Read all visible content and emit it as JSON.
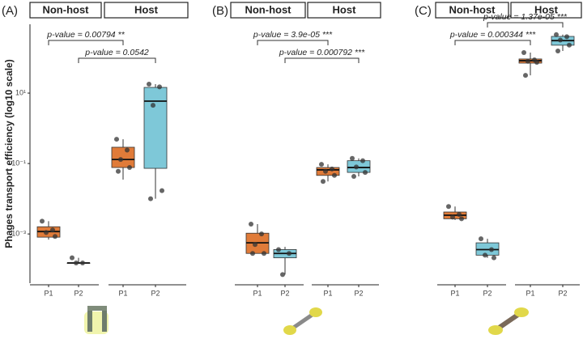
{
  "chart_data": [
    {
      "type": "box",
      "label": "(A)",
      "y_label": "Phages transport efficiency (log10 scale)",
      "log_scale": true,
      "ylim": [
        4e-05,
        900
      ],
      "yticks": [
        {
          "value": 10,
          "label": "10¹"
        },
        {
          "value": 0.1,
          "label": "10⁻¹"
        },
        {
          "value": 0.001,
          "label": "10⁻³"
        }
      ],
      "groups": [
        "Non-host",
        "Host"
      ],
      "categories": [
        "P1",
        "P2",
        "P1",
        "P2"
      ],
      "boxes": [
        {
          "color": "#e07b39",
          "whisker_low": 0.00069,
          "q1": 0.00081,
          "median": 0.00117,
          "q3": 0.0016,
          "whisker_high": 0.0023,
          "points": [
            0.0023,
            0.0013,
            0.0011,
            0.00085
          ]
        },
        {
          "color": "#7ec8d8",
          "whisker_low": 0.00015,
          "q1": 0.00015,
          "median": 0.00015,
          "q3": 0.00015,
          "whisker_high": 0.00021,
          "points": [
            0.00021,
            0.00015,
            0.00015
          ]
        },
        {
          "color": "#e07b39",
          "whisker_low": 0.035,
          "q1": 0.077,
          "median": 0.13,
          "q3": 0.29,
          "whisker_high": 0.49,
          "points": [
            0.49,
            0.24,
            0.13,
            0.077,
            0.06
          ]
        },
        {
          "color": "#7ec8d8",
          "whisker_low": 0.01,
          "q1": 0.073,
          "median": 5.9,
          "q3": 14.5,
          "whisker_high": 18,
          "points": [
            18,
            15,
            4.5,
            0.017,
            0.01
          ]
        }
      ],
      "annotations": [
        "p-value = 0.00794 **",
        "p-value = 0.0542"
      ]
    },
    {
      "type": "box",
      "label": "(B)",
      "groups": [
        "Non-host",
        "Host"
      ],
      "categories": [
        "P1",
        "P2",
        "P1",
        "P2"
      ],
      "boxes": [
        {
          "color": "#e07b39",
          "whisker_low": 0.00028,
          "q1": 0.00028,
          "median": 0.00056,
          "q3": 0.00105,
          "whisker_high": 0.0019,
          "points": [
            0.0019,
            0.001,
            0.0005,
            0.00028,
            0.00028
          ]
        },
        {
          "color": "#7ec8d8",
          "whisker_low": 7e-05,
          "q1": 0.00021,
          "median": 0.00028,
          "q3": 0.00036,
          "whisker_high": 0.00043,
          "points": [
            0.00036,
            0.00028,
            7e-05
          ]
        },
        {
          "color": "#e07b39",
          "whisker_low": 0.031,
          "q1": 0.046,
          "median": 0.066,
          "q3": 0.077,
          "whisker_high": 0.095,
          "points": [
            0.095,
            0.07,
            0.06,
            0.046,
            0.031
          ]
        },
        {
          "color": "#7ec8d8",
          "whisker_low": 0.043,
          "q1": 0.056,
          "median": 0.077,
          "q3": 0.12,
          "whisker_high": 0.14,
          "points": [
            0.14,
            0.12,
            0.08,
            0.056,
            0.043
          ]
        }
      ],
      "annotations": [
        "p-value = 3.9e-05 ***",
        "p-value = 0.000792 ***"
      ]
    },
    {
      "type": "box",
      "label": "(C)",
      "groups": [
        "Non-host",
        "Host"
      ],
      "categories": [
        "P1",
        "P2",
        "P1",
        "P2"
      ],
      "boxes": [
        {
          "color": "#e07b39",
          "whisker_low": 0.0025,
          "q1": 0.0027,
          "median": 0.0034,
          "q3": 0.0042,
          "whisker_high": 0.006,
          "points": [
            0.006,
            0.0036,
            0.003,
            0.0027
          ]
        },
        {
          "color": "#7ec8d8",
          "whisker_low": 0.00021,
          "q1": 0.00025,
          "median": 0.00036,
          "q3": 0.00056,
          "whisker_high": 0.00073,
          "points": [
            0.00073,
            0.00036,
            0.00025,
            0.00021
          ]
        },
        {
          "color": "#e07b39",
          "whisker_low": 32,
          "q1": 71,
          "median": 83,
          "q3": 93,
          "whisker_high": 141,
          "points": [
            141,
            88,
            80,
            75,
            32
          ]
        },
        {
          "color": "#7ec8d8",
          "whisker_low": 157,
          "q1": 229,
          "median": 309,
          "q3": 407,
          "whisker_high": 457,
          "points": [
            457,
            400,
            320,
            230,
            157
          ]
        }
      ],
      "annotations": [
        "p-value = 0.000344 ***",
        "p-value = 1.37e-05 ***"
      ]
    }
  ]
}
